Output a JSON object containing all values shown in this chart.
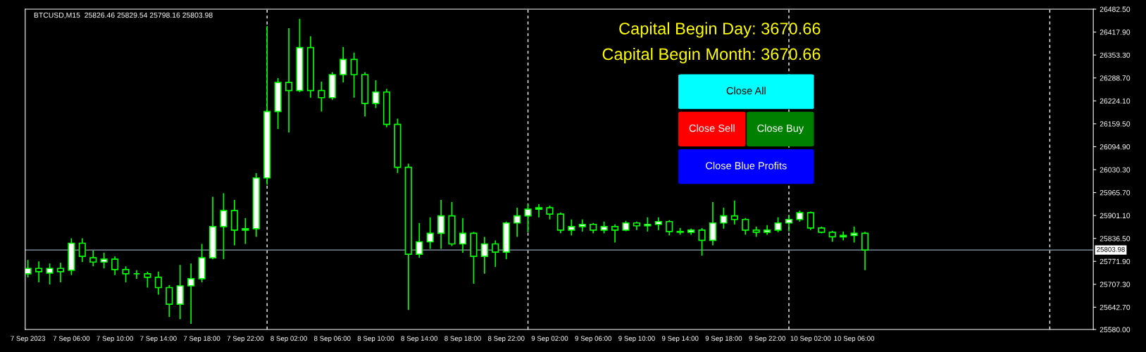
{
  "chart_data": {
    "type": "candlestick",
    "title": "BTCUSD,M15  25826.46 25829.54 25798.16 25803.98",
    "annotations": [
      "Capital Begin Day: 3670.66",
      "Capital Begin Month: 3670.66",
      "Close All",
      "Close Sell",
      "Close Buy",
      "Close Blue Profits"
    ],
    "x": [
      "2023-09-07T02:00",
      "2023-09-07T03:00",
      "2023-09-07T04:00",
      "2023-09-07T05:00",
      "2023-09-07T06:00",
      "2023-09-07T07:00",
      "2023-09-07T08:00",
      "2023-09-07T09:00",
      "2023-09-07T10:00",
      "2023-09-07T11:00",
      "2023-09-07T12:00",
      "2023-09-07T13:00",
      "2023-09-07T14:00",
      "2023-09-07T15:00",
      "2023-09-07T16:00",
      "2023-09-07T17:00",
      "2023-09-07T18:00",
      "2023-09-07T19:00",
      "2023-09-07T20:00",
      "2023-09-07T21:00",
      "2023-09-07T22:00",
      "2023-09-07T23:00",
      "2023-09-08T00:00",
      "2023-09-08T01:00",
      "2023-09-08T02:00",
      "2023-09-08T03:00",
      "2023-09-08T04:00",
      "2023-09-08T05:00",
      "2023-09-08T06:00",
      "2023-09-08T07:00",
      "2023-09-08T08:00",
      "2023-09-08T09:00",
      "2023-09-08T10:00",
      "2023-09-08T11:00",
      "2023-09-08T12:00",
      "2023-09-08T13:00",
      "2023-09-08T14:00",
      "2023-09-08T15:00",
      "2023-09-08T16:00",
      "2023-09-08T17:00",
      "2023-09-08T18:00",
      "2023-09-08T19:00",
      "2023-09-08T20:00",
      "2023-09-08T21:00",
      "2023-09-08T22:00",
      "2023-09-08T23:00",
      "2023-09-09T00:00",
      "2023-09-09T01:00",
      "2023-09-09T02:00",
      "2023-09-09T03:00",
      "2023-09-09T04:00",
      "2023-09-09T05:00",
      "2023-09-09T06:00",
      "2023-09-09T07:00",
      "2023-09-09T08:00",
      "2023-09-09T09:00",
      "2023-09-09T10:00",
      "2023-09-09T11:00",
      "2023-09-09T12:00",
      "2023-09-09T13:00",
      "2023-09-09T14:00",
      "2023-09-09T15:00",
      "2023-09-09T16:00",
      "2023-09-09T17:00",
      "2023-09-09T18:00",
      "2023-09-09T19:00",
      "2023-09-09T20:00",
      "2023-09-09T21:00",
      "2023-09-09T22:00",
      "2023-09-09T23:00",
      "2023-09-10T00:00",
      "2023-09-10T01:00",
      "2023-09-10T02:00",
      "2023-09-10T03:00",
      "2023-09-10T04:00",
      "2023-09-10T05:00",
      "2023-09-10T06:00",
      "2023-09-10T07:00"
    ],
    "ohlc": [
      [
        25737,
        25776,
        25727,
        25752
      ],
      [
        25752,
        25772,
        25713,
        25743
      ],
      [
        25739,
        25766,
        25707,
        25752
      ],
      [
        25752,
        25768,
        25713,
        25743
      ],
      [
        25747,
        25837,
        25733,
        25823
      ],
      [
        25823,
        25837,
        25770,
        25786
      ],
      [
        25782,
        25802,
        25758,
        25770
      ],
      [
        25770,
        25796,
        25752,
        25778
      ],
      [
        25778,
        25786,
        25733,
        25749
      ],
      [
        25749,
        25758,
        25713,
        25737
      ],
      [
        25737,
        25747,
        25723,
        25737
      ],
      [
        25737,
        25743,
        25698,
        25727
      ],
      [
        25727,
        25743,
        25678,
        25698
      ],
      [
        25698,
        25705,
        25615,
        25651
      ],
      [
        25651,
        25762,
        25609,
        25703
      ],
      [
        25703,
        25766,
        25596,
        25723
      ],
      [
        25723,
        25821,
        25713,
        25782
      ],
      [
        25782,
        25954,
        25778,
        25870
      ],
      [
        25870,
        25964,
        25778,
        25915
      ],
      [
        25915,
        25945,
        25817,
        25860
      ],
      [
        25860,
        25894,
        25821,
        25864
      ],
      [
        25864,
        26021,
        25841,
        26007
      ],
      [
        26007,
        26435,
        25988,
        26194
      ],
      [
        26194,
        26288,
        26145,
        26276
      ],
      [
        26276,
        26429,
        26135,
        26253
      ],
      [
        26253,
        26455,
        26249,
        26374
      ],
      [
        26374,
        26406,
        26233,
        26253
      ],
      [
        26253,
        26278,
        26194,
        26233
      ],
      [
        26233,
        26305,
        26227,
        26298
      ],
      [
        26298,
        26376,
        26276,
        26341
      ],
      [
        26341,
        26360,
        26233,
        26298
      ],
      [
        26298,
        26305,
        26180,
        26217
      ],
      [
        26217,
        26282,
        26204,
        26249
      ],
      [
        26249,
        26258,
        26150,
        26158
      ],
      [
        26158,
        26174,
        26021,
        26037
      ],
      [
        26037,
        26047,
        25635,
        25792
      ],
      [
        25792,
        25880,
        25782,
        25827
      ],
      [
        25827,
        25896,
        25807,
        25851
      ],
      [
        25851,
        25945,
        25807,
        25900
      ],
      [
        25900,
        25939,
        25815,
        25821
      ],
      [
        25821,
        25894,
        25796,
        25851
      ],
      [
        25851,
        25855,
        25709,
        25786
      ],
      [
        25786,
        25841,
        25737,
        25821
      ],
      [
        25821,
        25831,
        25756,
        25798
      ],
      [
        25798,
        25884,
        25778,
        25880
      ],
      [
        25880,
        25923,
        25841,
        25900
      ],
      [
        25900,
        25933,
        25854,
        25919
      ],
      [
        25919,
        25933,
        25896,
        25923
      ],
      [
        25923,
        25929,
        25890,
        25905
      ],
      [
        25905,
        25910,
        25851,
        25860
      ],
      [
        25860,
        25890,
        25845,
        25870
      ],
      [
        25870,
        25890,
        25856,
        25876
      ],
      [
        25876,
        25880,
        25851,
        25860
      ],
      [
        25860,
        25884,
        25851,
        25870
      ],
      [
        25870,
        25876,
        25825,
        25860
      ],
      [
        25860,
        25886,
        25857,
        25880
      ],
      [
        25880,
        25884,
        25860,
        25872
      ],
      [
        25872,
        25896,
        25856,
        25876
      ],
      [
        25876,
        25896,
        25860,
        25884
      ],
      [
        25884,
        25888,
        25845,
        25856
      ],
      [
        25856,
        25866,
        25847,
        25854
      ],
      [
        25854,
        25864,
        25847,
        25860
      ],
      [
        25860,
        25866,
        25788,
        25831
      ],
      [
        25831,
        25939,
        25817,
        25880
      ],
      [
        25880,
        25923,
        25864,
        25900
      ],
      [
        25900,
        25943,
        25876,
        25890
      ],
      [
        25890,
        25894,
        25847,
        25860
      ],
      [
        25860,
        25870,
        25841,
        25854
      ],
      [
        25854,
        25874,
        25847,
        25860
      ],
      [
        25860,
        25896,
        25854,
        25880
      ],
      [
        25880,
        25903,
        25856,
        25890
      ],
      [
        25890,
        25915,
        25884,
        25909
      ],
      [
        25909,
        25912,
        25860,
        25866
      ],
      [
        25866,
        25870,
        25851,
        25854
      ],
      [
        25854,
        25858,
        25827,
        25841
      ],
      [
        25841,
        25856,
        25831,
        25845
      ],
      [
        25845,
        25870,
        25825,
        25851
      ],
      [
        25851,
        25855,
        25747,
        25804
      ]
    ],
    "colors": [
      "#00ff00",
      "#00ff00",
      "#00ff00",
      "#00ff00",
      "#00ff00",
      "#00ff00",
      "#00ff00",
      "#00ff00",
      "#00ff00",
      "#00ff00",
      "#00ff00",
      "#00ff00",
      "#00ff00",
      "#00ff00",
      "#00ff00",
      "#00ff00",
      "#00ff00",
      "#00ff00",
      "#00ff00",
      "#00ff00",
      "#00ff00",
      "#00ff00",
      "#00ff00",
      "#00ff00",
      "#00ff00",
      "#00ff00",
      "#00ff00",
      "#00ff00",
      "#00ff00",
      "#00ff00",
      "#00ff00",
      "#00ff00",
      "#00ff00",
      "#00ff00",
      "#00ff00",
      "#00ff00",
      "#00ff00",
      "#00ff00",
      "#00ff00",
      "#00ff00",
      "#00ff00",
      "#00ff00",
      "#00ff00",
      "#00ff00",
      "#00ff00",
      "#00ff00",
      "#00ff00",
      "#00ff00",
      "#00ff00",
      "#00ff00",
      "#00ff00",
      "#00ff00",
      "#00ff00",
      "#00ff00",
      "#00ff00",
      "#00ff00",
      "#00ff00",
      "#00ff00",
      "#00ff00",
      "#00ff00",
      "#00ff00",
      "#00ff00",
      "#00ff00",
      "#00ff00",
      "#00ff00",
      "#00ff00",
      "#00ff00",
      "#00ff00",
      "#00ff00",
      "#00ff00",
      "#00ff00",
      "#00ff00",
      "#00ff00",
      "#00ff00",
      "#00ff00",
      "#00ff00",
      "#00ff00",
      "#00ff00"
    ],
    "xlim": [
      "2023-09-07T01:45",
      "2023-09-11T04:00"
    ],
    "xticks": [
      {
        "value": "2023-09-07T02:00",
        "label": "7 Sep 2023"
      },
      {
        "value": "2023-09-07T06:00",
        "label": "7 Sep 06:00"
      },
      {
        "value": "2023-09-07T10:00",
        "label": "7 Sep 10:00"
      },
      {
        "value": "2023-09-07T14:00",
        "label": "7 Sep 14:00"
      },
      {
        "value": "2023-09-07T18:00",
        "label": "7 Sep 18:00"
      },
      {
        "value": "2023-09-07T22:00",
        "label": "7 Sep 22:00"
      },
      {
        "value": "2023-09-08T02:00",
        "label": "8 Sep 02:00"
      },
      {
        "value": "2023-09-08T06:00",
        "label": "8 Sep 06:00"
      },
      {
        "value": "2023-09-08T10:00",
        "label": "8 Sep 10:00"
      },
      {
        "value": "2023-09-08T14:00",
        "label": "8 Sep 14:00"
      },
      {
        "value": "2023-09-08T18:00",
        "label": "8 Sep 18:00"
      },
      {
        "value": "2023-09-08T22:00",
        "label": "8 Sep 22:00"
      },
      {
        "value": "2023-09-09T02:00",
        "label": "9 Sep 02:00"
      },
      {
        "value": "2023-09-09T06:00",
        "label": "9 Sep 06:00"
      },
      {
        "value": "2023-09-09T10:00",
        "label": "9 Sep 10:00"
      },
      {
        "value": "2023-09-09T14:00",
        "label": "9 Sep 14:00"
      },
      {
        "value": "2023-09-09T18:00",
        "label": "9 Sep 18:00"
      },
      {
        "value": "2023-09-09T22:00",
        "label": "9 Sep 22:00"
      },
      {
        "value": "2023-09-10T02:00",
        "label": "10 Sep 02:00"
      },
      {
        "value": "2023-09-10T06:00",
        "label": "10 Sep 06:00"
      }
    ],
    "ylim": [
      25580,
      26482.5
    ],
    "yticks": [
      {
        "value": 25580,
        "label": "25580.00"
      },
      {
        "value": 25642.7,
        "label": "25642.70"
      },
      {
        "value": 25707.3,
        "label": "25707.30"
      },
      {
        "value": 25771.9,
        "label": "25771.90"
      },
      {
        "value": 25836.5,
        "label": "25836.50"
      },
      {
        "value": 25901.1,
        "label": "25901.10"
      },
      {
        "value": 25965.7,
        "label": "25965.70"
      },
      {
        "value": 26030.3,
        "label": "26030.30"
      },
      {
        "value": 26094.9,
        "label": "26094.90"
      },
      {
        "value": 26159.5,
        "label": "26159.50"
      },
      {
        "value": 26224.1,
        "label": "26224.10"
      },
      {
        "value": 26288.7,
        "label": "26288.70"
      },
      {
        "value": 26353.3,
        "label": "26353.30"
      },
      {
        "value": 26417.9,
        "label": "26417.90"
      },
      {
        "value": 26482.5,
        "label": "26482.50"
      }
    ],
    "ref_lines": [
      {
        "axis": "x",
        "value": "2023-09-08T00:00",
        "label": null,
        "color": "#ffffff",
        "line_style": "dashed"
      },
      {
        "axis": "x",
        "value": "2023-09-09T00:00",
        "label": null,
        "color": "#ffffff",
        "line_style": "dashed"
      },
      {
        "axis": "x",
        "value": "2023-09-10T00:00",
        "label": null,
        "color": "#ffffff",
        "line_style": "dashed"
      },
      {
        "axis": "x",
        "value": "2023-09-11T00:00",
        "label": null,
        "color": "#ffffff",
        "line_style": "dashed"
      },
      {
        "axis": "y",
        "value": 25803.98,
        "label": "25803.98",
        "color": "#8da0b4",
        "line_style": "solid"
      }
    ],
    "grid": false,
    "legend": false
  }
}
